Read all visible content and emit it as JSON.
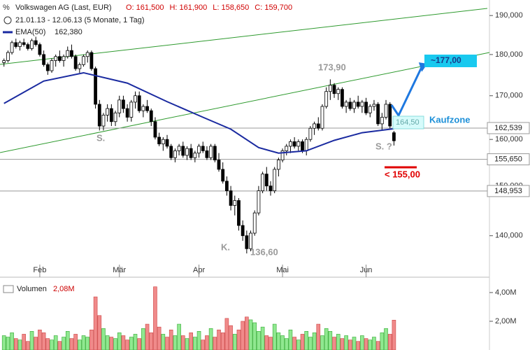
{
  "chart_data": {
    "type": "candlestick",
    "title": "Volkswagen AG (Last, EUR)",
    "quote": [
      "O: 161,500",
      "H: 161,900",
      "L: 158,650",
      "C: 159,700"
    ],
    "period": "21.01.13 - 12.06.13 (5 Monate, 1 Tag)",
    "log_scale": true,
    "up_color": "#ffffff",
    "down_color": "#000000",
    "xlim": [
      -1,
      122
    ],
    "xticks": [
      {
        "value": 9,
        "label": "Feb"
      },
      {
        "value": 29,
        "label": "Mär"
      },
      {
        "value": 49,
        "label": "Apr"
      },
      {
        "value": 70,
        "label": "Mai"
      },
      {
        "value": 91,
        "label": "Jun"
      }
    ],
    "ylim": [
      134.5,
      193.2
    ],
    "yticks": [
      {
        "value": 140,
        "label": "140,000"
      },
      {
        "value": 150,
        "label": "150,000"
      },
      {
        "value": 160,
        "label": "160,000"
      },
      {
        "value": 170,
        "label": "170,000"
      },
      {
        "value": 180,
        "label": "180,000"
      },
      {
        "value": 190,
        "label": "190,000"
      }
    ],
    "ohlc": [
      [
        178,
        179,
        177,
        178.5
      ],
      [
        178.5,
        181,
        178,
        180.5
      ],
      [
        180.5,
        183.5,
        180,
        183
      ],
      [
        183,
        184,
        181.5,
        182
      ],
      [
        182,
        183.5,
        181,
        183
      ],
      [
        183,
        184,
        182,
        182.5
      ],
      [
        182.5,
        183,
        181,
        181.5
      ],
      [
        181.5,
        184,
        181,
        183.5
      ],
      [
        183.5,
        184.5,
        182,
        182.5
      ],
      [
        182.5,
        183,
        179.5,
        180
      ],
      [
        180,
        181,
        177,
        177.5
      ],
      [
        177.5,
        178,
        175,
        176
      ],
      [
        176,
        179,
        175.5,
        178.5
      ],
      [
        178.5,
        180,
        177,
        179.5
      ],
      [
        179.5,
        181,
        178,
        178.5
      ],
      [
        178.5,
        180,
        177,
        179.5
      ],
      [
        179.5,
        182,
        179,
        181
      ],
      [
        181,
        182.5,
        179,
        179.5
      ],
      [
        179.5,
        180,
        176,
        176.5
      ],
      [
        176.5,
        178,
        175.5,
        177.5
      ],
      [
        177.5,
        180,
        177,
        179.5
      ],
      [
        179.5,
        181,
        178,
        180.5
      ],
      [
        180.5,
        181,
        176,
        176.5
      ],
      [
        176.5,
        177,
        167,
        168
      ],
      [
        168,
        169,
        162,
        163
      ],
      [
        163,
        166,
        162,
        165.5
      ],
      [
        165.5,
        168,
        164,
        167
      ],
      [
        167,
        168,
        163,
        164
      ],
      [
        164,
        166.5,
        163,
        166
      ],
      [
        166,
        170,
        165,
        169
      ],
      [
        169,
        170,
        166,
        167
      ],
      [
        167,
        168,
        164,
        165
      ],
      [
        165,
        169,
        164,
        168.5
      ],
      [
        168.5,
        171,
        167,
        170
      ],
      [
        170,
        171,
        166,
        166.5
      ],
      [
        166.5,
        168,
        165,
        167.5
      ],
      [
        167.5,
        169,
        166,
        166.5
      ],
      [
        166.5,
        167,
        163,
        164
      ],
      [
        164,
        165,
        160,
        160.5
      ],
      [
        160.5,
        161.5,
        158.5,
        159
      ],
      [
        159,
        160.5,
        157.5,
        160
      ],
      [
        160,
        161,
        158,
        158.5
      ],
      [
        158.5,
        159,
        155.5,
        156
      ],
      [
        156,
        158,
        155,
        157.5
      ],
      [
        157.5,
        159,
        156.5,
        158.5
      ],
      [
        158.5,
        159.5,
        156,
        156.5
      ],
      [
        156.5,
        158.5,
        155.5,
        158
      ],
      [
        158,
        159,
        155.5,
        156
      ],
      [
        156,
        157.5,
        155,
        157
      ],
      [
        157,
        159,
        156,
        158.5
      ],
      [
        158.5,
        159.5,
        157,
        157.5
      ],
      [
        157.5,
        158.5,
        155.5,
        156
      ],
      [
        156,
        159,
        155.5,
        158.5
      ],
      [
        158.5,
        159,
        155,
        155.5
      ],
      [
        155.5,
        157,
        153,
        153.5
      ],
      [
        153.5,
        155,
        150.5,
        151
      ],
      [
        151,
        152,
        148,
        149
      ],
      [
        149,
        150,
        145,
        146
      ],
      [
        146,
        148,
        144,
        147
      ],
      [
        147,
        147.5,
        141,
        142
      ],
      [
        142,
        143,
        139,
        140
      ],
      [
        140,
        141,
        136.6,
        137.5
      ],
      [
        137.5,
        141,
        137,
        140.5
      ],
      [
        140.5,
        145,
        140,
        144.5
      ],
      [
        144.5,
        150,
        144,
        149
      ],
      [
        149,
        153,
        148.5,
        152.5
      ],
      [
        152.5,
        154,
        149,
        150
      ],
      [
        150,
        151,
        148,
        149
      ],
      [
        149,
        154,
        148.5,
        153.5
      ],
      [
        153.5,
        156,
        152,
        155.5
      ],
      [
        155.5,
        158,
        155,
        157.5
      ],
      [
        157.5,
        159,
        156.5,
        158.5
      ],
      [
        158.5,
        160,
        157,
        159.5
      ],
      [
        159.5,
        160.5,
        158,
        158.5
      ],
      [
        158.5,
        160,
        157.5,
        159.5
      ],
      [
        159.5,
        160,
        157,
        157.5
      ],
      [
        157.5,
        160.5,
        156.5,
        160
      ],
      [
        160,
        163,
        159.5,
        162.5
      ],
      [
        162.5,
        164,
        161,
        163.5
      ],
      [
        163.5,
        165,
        162,
        162.5
      ],
      [
        162.5,
        168,
        162,
        167.5
      ],
      [
        167.5,
        172,
        167,
        171
      ],
      [
        171,
        173.9,
        169,
        172.5
      ],
      [
        172.5,
        173,
        169.5,
        170.5
      ],
      [
        170.5,
        172,
        169,
        171.5
      ],
      [
        171.5,
        172,
        167,
        167.5
      ],
      [
        167.5,
        169,
        166,
        168.5
      ],
      [
        168.5,
        169.5,
        166.5,
        167
      ],
      [
        167,
        169,
        166,
        168.5
      ],
      [
        168.5,
        170,
        167,
        167.5
      ],
      [
        167.5,
        169,
        166,
        168.5
      ],
      [
        168.5,
        169.5,
        165.5,
        166
      ],
      [
        166,
        168,
        165,
        167.5
      ],
      [
        167.5,
        169,
        166.5,
        168
      ],
      [
        168,
        168.5,
        163,
        163.5
      ],
      [
        163.5,
        166,
        162,
        165
      ],
      [
        165,
        169,
        164.5,
        168
      ],
      [
        168,
        168.5,
        162.5,
        163
      ],
      [
        161.5,
        161.9,
        158.65,
        159.7
      ]
    ],
    "ema": {
      "name": "EMA(50)",
      "last": "162,380",
      "color": "#1a2aa0",
      "x": [
        0,
        10,
        20,
        31,
        41,
        50,
        57,
        64,
        69,
        76,
        83,
        90,
        98
      ],
      "values": [
        168.2,
        173.5,
        175.5,
        173,
        168.6,
        165,
        162.3,
        158.2,
        157,
        157.5,
        159.8,
        161.5,
        162.4
      ]
    },
    "levels": [
      {
        "value": 162.539,
        "label": "162,539"
      },
      {
        "value": 155.65,
        "label": "155,650"
      },
      {
        "value": 148.953,
        "label": "148,953"
      }
    ],
    "annotations": [
      "S.",
      "K.",
      "136,60",
      "173,90",
      "S. ?",
      "~177,00",
      "164,50",
      "Kaufzone",
      "< 155,00"
    ],
    "volume": {
      "name": "Volumen",
      "last": {
        "value": 2.08,
        "label": "2,08M"
      },
      "up_color": "#90e890",
      "down_color": "#f08a8a",
      "ylim": [
        0,
        4.63
      ],
      "yticks": [
        {
          "value": 2,
          "label": "2,00M"
        },
        {
          "value": 4,
          "label": "4,00M"
        }
      ],
      "values": [
        1.0,
        0.9,
        1.2,
        0.8,
        0.7,
        1.1,
        0.6,
        1.3,
        0.9,
        1.4,
        1.2,
        0.8,
        0.7,
        1.0,
        0.6,
        0.9,
        1.3,
        0.8,
        1.1,
        0.7,
        1.0,
        0.9,
        1.4,
        3.7,
        2.4,
        1.5,
        1.0,
        0.9,
        0.8,
        1.2,
        1.0,
        0.7,
        0.9,
        1.1,
        0.8,
        1.5,
        1.8,
        1.2,
        4.4,
        1.6,
        1.1,
        0.9,
        1.4,
        1.0,
        1.8,
        1.0,
        0.8,
        1.2,
        0.9,
        1.3,
        0.7,
        1.0,
        1.5,
        0.9,
        1.4,
        1.2,
        2.2,
        1.7,
        1.1,
        1.4,
        2.0,
        2.3,
        2.1,
        1.9,
        1.3,
        1.6,
        1.0,
        0.9,
        1.8,
        1.2,
        1.0,
        0.8,
        1.4,
        0.9,
        0.7,
        1.1,
        1.3,
        0.9,
        1.2,
        1.8,
        1.0,
        1.5,
        1.3,
        0.9,
        1.1,
        0.8,
        1.0,
        0.7,
        0.9,
        0.6,
        1.0,
        0.8,
        0.7,
        0.9,
        0.6,
        1.2,
        1.5,
        1.1,
        2.08
      ]
    }
  }
}
